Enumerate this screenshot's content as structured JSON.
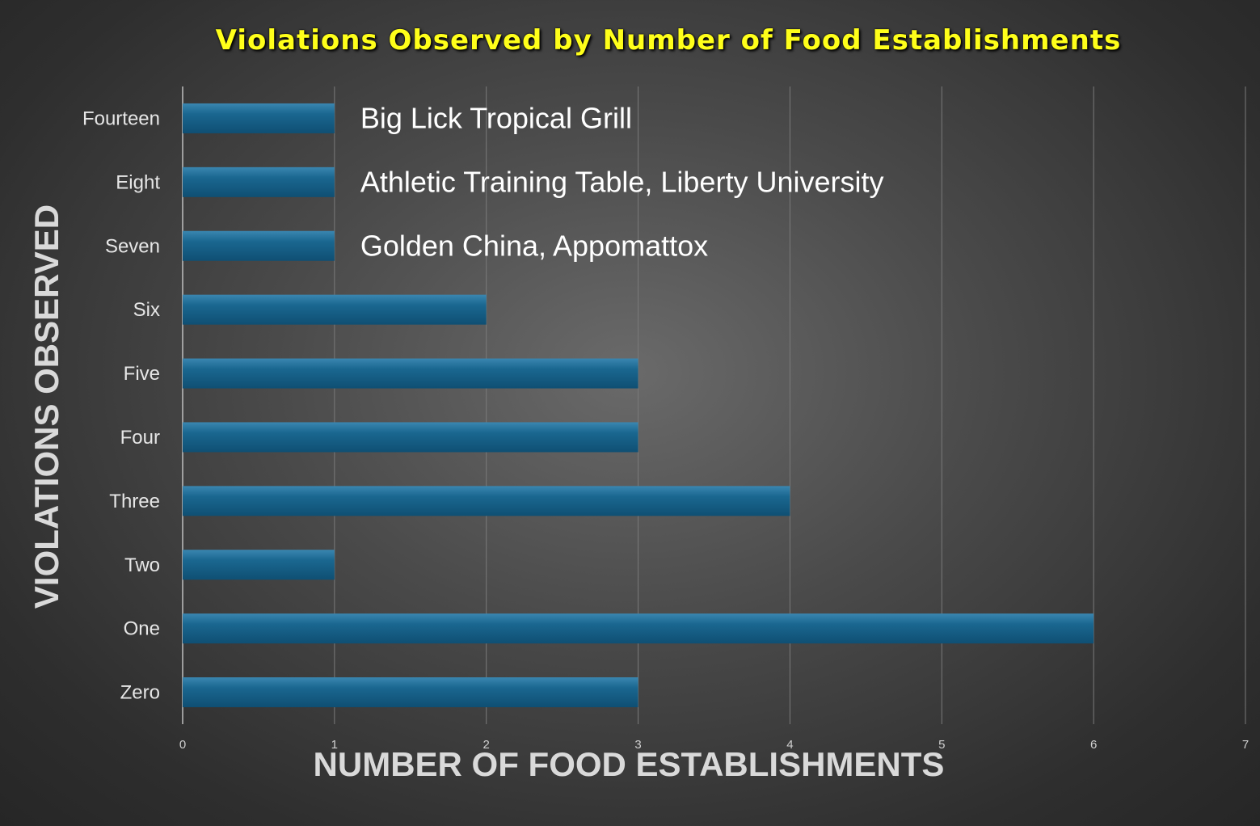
{
  "chart_data": {
    "type": "bar",
    "orientation": "horizontal",
    "title": "Violations Observed by Number of Food Establishments",
    "xlabel": "NUMBER OF FOOD ESTABLISHMENTS",
    "ylabel": "VIOLATIONS OBSERVED",
    "categories": [
      "Zero",
      "One",
      "Two",
      "Three",
      "Four",
      "Five",
      "Six",
      "Seven",
      "Eight",
      "Fourteen"
    ],
    "values": [
      3,
      6,
      1,
      4,
      3,
      3,
      2,
      1,
      1,
      1
    ],
    "xlim": [
      0,
      7
    ],
    "xticks": [
      "0",
      "1",
      "2",
      "3",
      "4",
      "5",
      "6",
      "7"
    ],
    "grid": true,
    "annotations": [
      {
        "category": "Fourteen",
        "text": "Big Lick Tropical Grill"
      },
      {
        "category": "Eight",
        "text": "Athletic Training Table, Liberty University"
      },
      {
        "category": "Seven",
        "text": "Golden China, Appomattox"
      }
    ],
    "colors": {
      "bar": "#135b82",
      "bar_highlight": "#2f7da6",
      "title": "#ffff1a",
      "axis_title": "#d9d9d9",
      "gridline": "#7a7a7a"
    }
  }
}
